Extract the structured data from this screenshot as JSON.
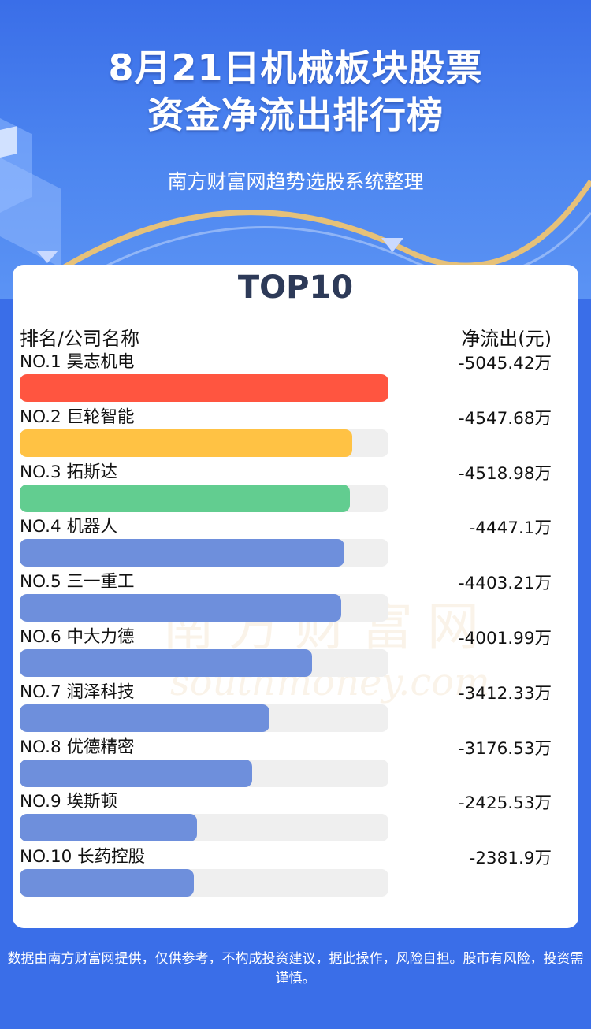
{
  "header": {
    "title_line1": "8月21日机械板块股票",
    "title_line2": "资金净流出排行榜",
    "subtitle": "南方财富网趋势选股系统整理"
  },
  "card": {
    "title": "TOP10",
    "col_left": "排名/公司名称",
    "col_right": "净流出(元)"
  },
  "watermark": {
    "cn": "南方财富网",
    "en": "southmoney.com"
  },
  "colors": {
    "rank1": "#ff5540",
    "rank2": "#ffc244",
    "rank3": "#62cd90",
    "rest": "#6e8fdc",
    "track": "#efefef",
    "background": "#3a6ee8"
  },
  "chart_data": {
    "type": "bar",
    "orientation": "horizontal",
    "title": "8月21日机械板块股票资金净流出排行榜",
    "unit": "万",
    "categories": [
      "NO.1 昊志机电",
      "NO.2 巨轮智能",
      "NO.3 拓斯达",
      "NO.4 机器人",
      "NO.5 三一重工",
      "NO.6 中大力德",
      "NO.7 润泽科技",
      "NO.8 优德精密",
      "NO.9 埃斯顿",
      "NO.10 长药控股"
    ],
    "values": [
      -5045.42,
      -4547.68,
      -4518.98,
      -4447.1,
      -4403.21,
      -4001.99,
      -3412.33,
      -3176.53,
      -2425.53,
      -2381.9
    ],
    "value_labels": [
      "-5045.42万",
      "-4547.68万",
      "-4518.98万",
      "-4447.1万",
      "-4403.21万",
      "-4001.99万",
      "-3412.33万",
      "-3176.53万",
      "-2425.53万",
      "-2381.9万"
    ]
  },
  "footer": {
    "disclaimer": "数据由南方财富网提供，仅供参考，不构成投资建议，据此操作，风险自担。股市有风险，投资需谨慎。"
  }
}
